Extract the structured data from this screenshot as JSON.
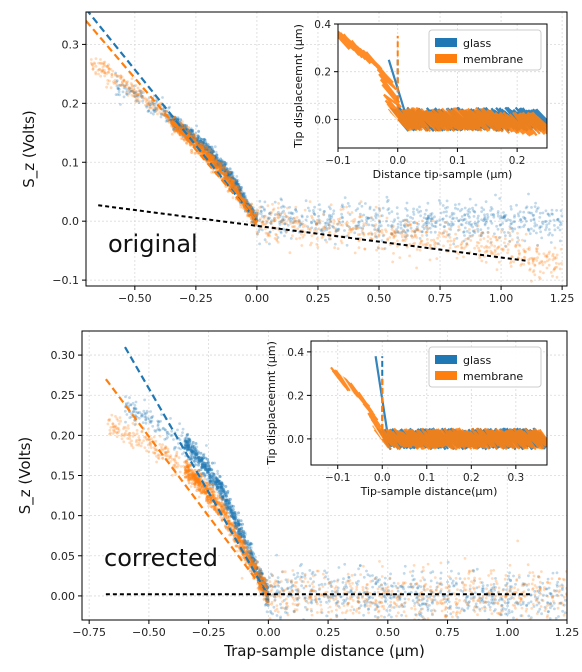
{
  "chart_data": [
    {
      "id": "top-main",
      "type": "scatter",
      "annotation": "original",
      "xlabel": "",
      "ylabel": "S_z (Volts)",
      "xlim": [
        -0.7,
        1.27
      ],
      "ylim": [
        -0.11,
        0.355
      ],
      "xticks": [
        -0.5,
        -0.25,
        0.0,
        0.25,
        0.5,
        0.75,
        1.0,
        1.25
      ],
      "xtick_labels": [
        "−0.50",
        "−0.25",
        "0.00",
        "0.25",
        "0.50",
        "0.75",
        "1.00",
        "1.25"
      ],
      "yticks": [
        -0.1,
        0.0,
        0.1,
        0.2,
        0.3
      ],
      "ytick_labels": [
        "−0.1",
        "0.0",
        "0.1",
        "0.2",
        "0.3"
      ],
      "grid": true,
      "series": [
        {
          "name": "glass",
          "color": "#1f77b4",
          "kind": "scatter",
          "x": [
            -0.58,
            -0.5,
            -0.4,
            -0.3,
            -0.2,
            -0.1,
            -0.05,
            0.0,
            0.25,
            0.5,
            0.75,
            1.0,
            1.25
          ],
          "y": [
            0.23,
            0.215,
            0.19,
            0.155,
            0.12,
            0.07,
            0.035,
            0.0,
            0.0,
            0.0,
            0.0,
            0.0,
            0.0
          ]
        },
        {
          "name": "membrane",
          "color": "#ff7f0e",
          "kind": "scatter",
          "x": [
            -0.68,
            -0.6,
            -0.5,
            -0.4,
            -0.3,
            -0.2,
            -0.1,
            0.0,
            0.25,
            0.5,
            0.75,
            1.0,
            1.25
          ],
          "y": [
            0.27,
            0.25,
            0.22,
            0.19,
            0.15,
            0.11,
            0.06,
            0.0,
            -0.01,
            -0.02,
            -0.03,
            -0.05,
            -0.08
          ]
        }
      ],
      "fit_lines": [
        {
          "color": "#1f77b4",
          "style": "dashed",
          "x": [
            -0.7,
            0.0
          ],
          "y": [
            0.36,
            0.0
          ]
        },
        {
          "color": "#ff7f0e",
          "style": "dashed",
          "x": [
            -0.7,
            0.0
          ],
          "y": [
            0.34,
            0.0
          ]
        },
        {
          "color": "#000000",
          "style": "dashed",
          "x": [
            -0.65,
            1.1
          ],
          "y": [
            0.027,
            -0.067
          ]
        }
      ]
    },
    {
      "id": "top-inset",
      "type": "line",
      "xlabel": "Distance tip-sample (μm)",
      "ylabel": "Tip displaceemnt (μm)",
      "xlim": [
        -0.1,
        0.25
      ],
      "ylim": [
        -0.12,
        0.4
      ],
      "xticks": [
        -0.1,
        0.0,
        0.1,
        0.2
      ],
      "xtick_labels": [
        "−0.1",
        "0.0",
        "0.1",
        "0.2"
      ],
      "yticks": [
        0.0,
        0.2,
        0.4
      ],
      "ytick_labels": [
        "0.0",
        "0.2",
        "0.4"
      ],
      "grid": true,
      "legend": {
        "position": "top-right",
        "entries": [
          "glass",
          "membrane"
        ]
      },
      "series": [
        {
          "name": "glass",
          "color": "#1f77b4",
          "x": [
            0.0,
            0.0,
            0.05,
            0.1,
            0.15,
            0.2,
            0.25
          ],
          "y": [
            0.25,
            0.0,
            0.0,
            0.0,
            0.0,
            0.0,
            0.0
          ]
        },
        {
          "name": "membrane",
          "color": "#ff7f0e",
          "x": [
            -0.1,
            -0.07,
            -0.04,
            -0.02,
            0.0,
            0.05,
            0.1,
            0.15,
            0.2,
            0.25
          ],
          "y": [
            0.35,
            0.3,
            0.24,
            0.18,
            0.0,
            0.0,
            0.0,
            0.0,
            -0.02,
            -0.02
          ]
        }
      ]
    },
    {
      "id": "bottom-main",
      "type": "scatter",
      "annotation": "corrected",
      "xlabel": "Trap-sample distance (μm)",
      "ylabel": "S_z (Volts)",
      "xlim": [
        -0.78,
        1.25
      ],
      "ylim": [
        -0.03,
        0.33
      ],
      "xticks": [
        -0.75,
        -0.5,
        -0.25,
        0.0,
        0.25,
        0.5,
        0.75,
        1.0,
        1.25
      ],
      "xtick_labels": [
        "−0.75",
        "−0.50",
        "−0.25",
        "0.00",
        "0.25",
        "0.50",
        "0.75",
        "1.00",
        "1.25"
      ],
      "yticks": [
        0.0,
        0.05,
        0.1,
        0.15,
        0.2,
        0.25,
        0.3
      ],
      "ytick_labels": [
        "0.00",
        "0.05",
        "0.10",
        "0.15",
        "0.20",
        "0.25",
        "0.30"
      ],
      "grid": true,
      "series": [
        {
          "name": "glass",
          "color": "#1f77b4",
          "kind": "scatter",
          "x": [
            -0.6,
            -0.5,
            -0.4,
            -0.3,
            -0.2,
            -0.1,
            0.0,
            0.25,
            0.5,
            0.75,
            1.0,
            1.25
          ],
          "y": [
            0.235,
            0.22,
            0.2,
            0.175,
            0.135,
            0.07,
            0.0,
            0.0,
            0.0,
            0.0,
            0.0,
            0.0
          ]
        },
        {
          "name": "membrane",
          "color": "#ff7f0e",
          "kind": "scatter",
          "x": [
            -0.68,
            -0.6,
            -0.5,
            -0.4,
            -0.3,
            -0.2,
            -0.1,
            0.0,
            0.25,
            0.5,
            0.75,
            1.0,
            1.25
          ],
          "y": [
            0.215,
            0.205,
            0.19,
            0.17,
            0.145,
            0.11,
            0.055,
            0.0,
            0.0,
            0.0,
            0.0,
            0.0,
            0.0
          ]
        }
      ],
      "fit_lines": [
        {
          "color": "#1f77b4",
          "style": "dashed",
          "x": [
            -0.6,
            0.0
          ],
          "y": [
            0.31,
            0.0
          ]
        },
        {
          "color": "#ff7f0e",
          "style": "dashed",
          "x": [
            -0.68,
            0.0
          ],
          "y": [
            0.27,
            0.0
          ]
        },
        {
          "color": "#000000",
          "style": "dashed",
          "x": [
            -0.68,
            1.1
          ],
          "y": [
            0.002,
            0.002
          ]
        }
      ]
    },
    {
      "id": "bottom-inset",
      "type": "line",
      "xlabel": "Tip-sample distance(μm)",
      "ylabel": "Tip displaceemnt (μm)",
      "xlim": [
        -0.16,
        0.37
      ],
      "ylim": [
        -0.12,
        0.45
      ],
      "xticks": [
        -0.1,
        0.0,
        0.1,
        0.2,
        0.3
      ],
      "xtick_labels": [
        "−0.1",
        "0.0",
        "0.1",
        "0.2",
        "0.3"
      ],
      "yticks": [
        0.0,
        0.2,
        0.4
      ],
      "ytick_labels": [
        "0.0",
        "0.2",
        "0.4"
      ],
      "grid": true,
      "legend": {
        "position": "top-right",
        "entries": [
          "glass",
          "membrane"
        ]
      },
      "series": [
        {
          "name": "glass",
          "color": "#1f77b4",
          "x": [
            0.0,
            0.0,
            0.1,
            0.2,
            0.3,
            0.37
          ],
          "y": [
            0.38,
            0.0,
            0.0,
            0.0,
            0.0,
            0.0
          ]
        },
        {
          "name": "membrane",
          "color": "#ff7f0e",
          "x": [
            -0.1,
            -0.07,
            -0.04,
            -0.02,
            0.0,
            0.1,
            0.2,
            0.3,
            0.37
          ],
          "y": [
            0.28,
            0.24,
            0.17,
            0.1,
            0.0,
            0.0,
            0.0,
            0.0,
            0.0
          ]
        }
      ]
    }
  ]
}
